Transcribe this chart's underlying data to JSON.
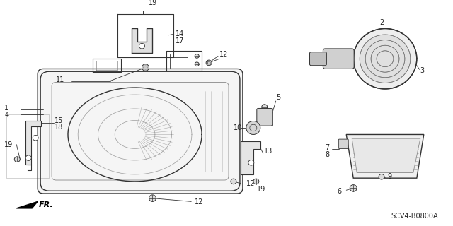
{
  "bg_color": "#ffffff",
  "part_code": "SCV4-B0800A",
  "line_color": "#333333",
  "fig_width": 6.4,
  "fig_height": 3.2,
  "dpi": 100
}
